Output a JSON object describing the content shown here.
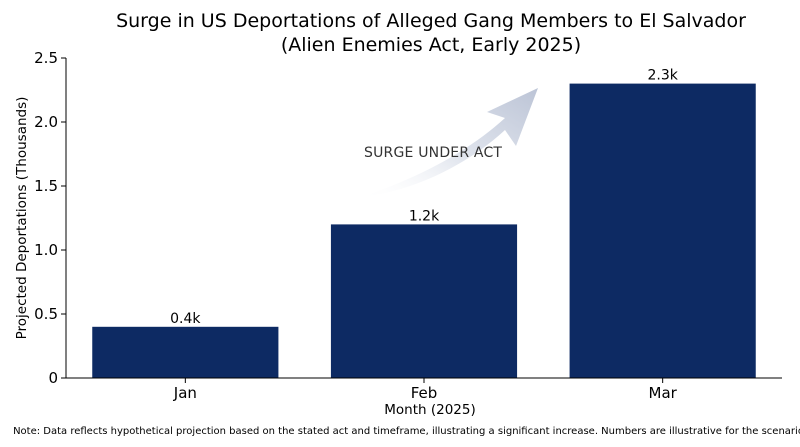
{
  "chart_data": {
    "type": "bar",
    "title": "Surge in US Deportations of Alleged Gang Members to El Salvador",
    "subtitle": "(Alien Enemies Act, Early 2025)",
    "xlabel": "Month (2025)",
    "ylabel": "Projected Deportations (Thousands)",
    "categories": [
      "Jan",
      "Feb",
      "Mar"
    ],
    "values": [
      0.4,
      1.2,
      2.3
    ],
    "data_labels": [
      "0.4k",
      "1.2k",
      "2.3k"
    ],
    "ylim": [
      0,
      2.5
    ],
    "yticks": [
      0,
      0.5,
      1.0,
      1.5,
      2.0,
      2.5
    ],
    "ytick_labels": [
      "0",
      "0.5",
      "1.0",
      "1.5",
      "2.0",
      "2.5"
    ],
    "grid": false,
    "bar_color": "#0d2a63",
    "annotation": {
      "text": "SURGE UNDER ACT",
      "arrow": "curved-up-right"
    },
    "note": "Note: Data reflects hypothetical projection based on the stated act and timeframe, illustrating a significant increase. Numbers are illustrative for the scenario."
  }
}
